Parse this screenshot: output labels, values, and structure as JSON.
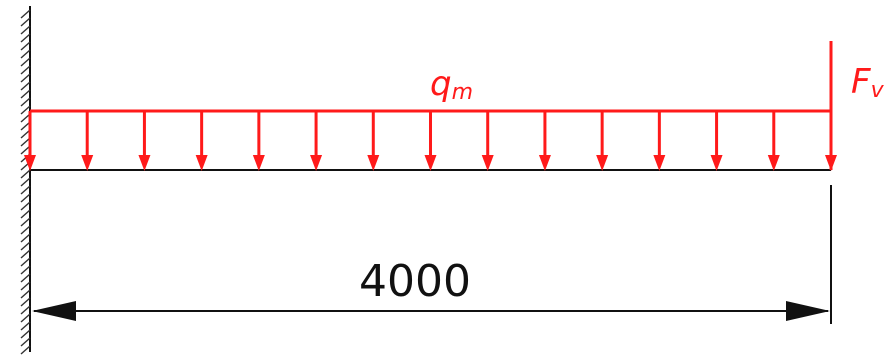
{
  "diagram": {
    "load_label": "q",
    "load_label_sub": "m",
    "force_label": "F",
    "force_label_sub": "v",
    "dimension": "4000",
    "colors": {
      "load": "#ff1a1a",
      "line": "#111111",
      "hatch": "#333333"
    }
  }
}
